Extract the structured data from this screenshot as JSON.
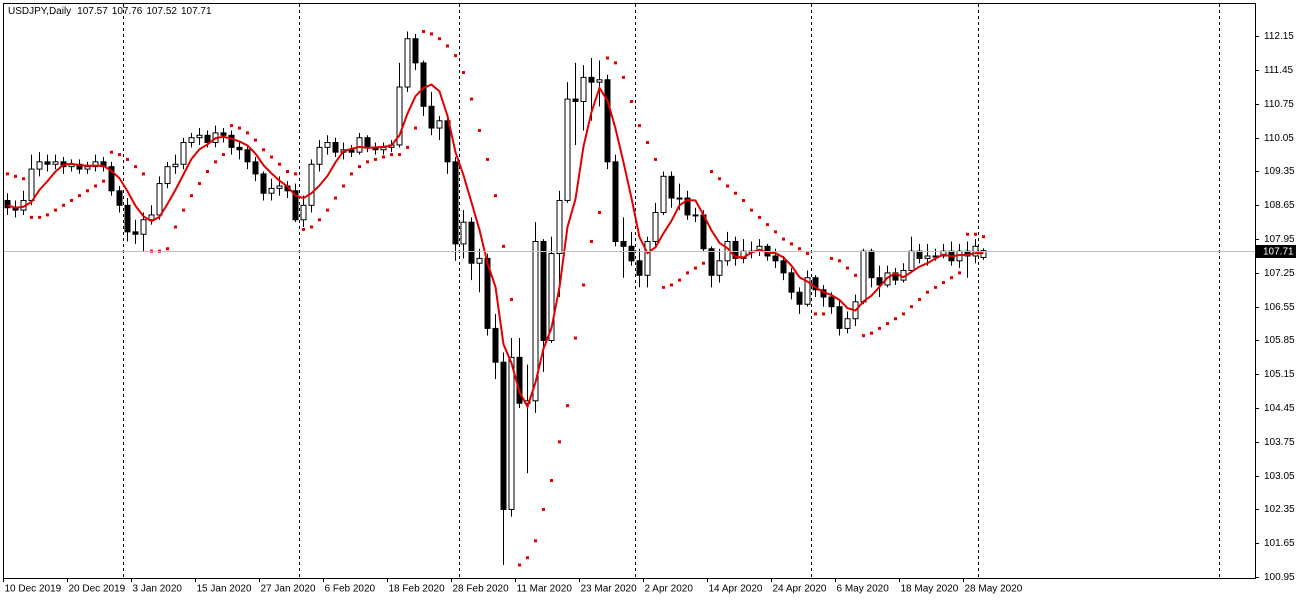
{
  "chart_data": {
    "type": "candlestick",
    "title": "USDJPY,Daily",
    "categories": [
      "10 Dec 2019",
      null,
      null,
      null,
      null,
      null,
      null,
      null,
      "20 Dec 2019",
      null,
      null,
      null,
      null,
      null,
      null,
      null,
      "3 Jan 2020",
      null,
      null,
      null,
      null,
      null,
      null,
      null,
      "15 Jan 2020",
      null,
      null,
      null,
      null,
      null,
      null,
      null,
      "27 Jan 2020",
      null,
      null,
      null,
      null,
      null,
      null,
      null,
      "6 Feb 2020",
      null,
      null,
      null,
      null,
      null,
      null,
      null,
      "18 Feb 2020",
      null,
      null,
      null,
      null,
      null,
      null,
      null,
      "28 Feb 2020",
      null,
      null,
      null,
      null,
      null,
      null,
      null,
      "11 Mar 2020",
      null,
      null,
      null,
      null,
      null,
      null,
      null,
      "23 Mar 2020",
      null,
      null,
      null,
      null,
      null,
      null,
      null,
      "2 Apr 2020",
      null,
      null,
      null,
      null,
      null,
      null,
      null,
      "14 Apr 2020",
      null,
      null,
      null,
      null,
      null,
      null,
      null,
      "24 Apr 2020",
      null,
      null,
      null,
      null,
      null,
      null,
      null,
      "6 May 2020",
      null,
      null,
      null,
      null,
      null,
      null,
      null,
      "18 May 2020",
      null,
      null,
      null,
      null,
      null,
      null,
      null,
      "28 May 2020",
      null,
      null
    ],
    "open": [
      108.75,
      108.6,
      108.55,
      108.75,
      109.4,
      109.55,
      109.5,
      109.55,
      109.45,
      109.5,
      109.4,
      109.45,
      109.55,
      109.45,
      108.95,
      108.65,
      108.1,
      108.05,
      108.35,
      108.45,
      109.1,
      109.45,
      109.5,
      109.95,
      110.05,
      110.1,
      109.95,
      110.15,
      110.1,
      109.85,
      109.8,
      109.55,
      109.3,
      108.9,
      109.0,
      109.05,
      108.95,
      108.35,
      108.65,
      109.5,
      109.85,
      109.95,
      109.75,
      109.8,
      109.75,
      110.05,
      109.85,
      109.8,
      109.85,
      109.9,
      111.1,
      112.1,
      111.6,
      110.7,
      110.25,
      110.4,
      109.55,
      107.85,
      108.3,
      107.45,
      107.55,
      106.1,
      105.4,
      102.35,
      105.5,
      104.55,
      104.6,
      107.9,
      105.85,
      107.65,
      108.75,
      110.85,
      110.8,
      111.3,
      111.2,
      111.25,
      109.55,
      107.9,
      107.8,
      107.5,
      107.2,
      107.9,
      108.5,
      109.25,
      108.8,
      108.8,
      108.45,
      108.45,
      107.75,
      107.2,
      107.5,
      107.9,
      107.55,
      107.7,
      107.7,
      107.8,
      107.6,
      107.5,
      107.25,
      106.85,
      106.6,
      107.15,
      106.9,
      106.75,
      106.55,
      106.1,
      106.3,
      106.65,
      107.7,
      107.15,
      107.0,
      107.25,
      107.1,
      107.3,
      107.7,
      107.55,
      107.6,
      107.6,
      107.7,
      107.5,
      107.7,
      107.6,
      107.57
    ],
    "high": [
      108.9,
      108.75,
      108.95,
      109.7,
      109.75,
      109.7,
      109.7,
      109.65,
      109.6,
      109.6,
      109.55,
      109.7,
      109.65,
      109.55,
      109.05,
      108.8,
      108.35,
      108.5,
      108.65,
      109.25,
      109.55,
      109.7,
      110.05,
      110.15,
      110.25,
      110.2,
      110.3,
      110.25,
      110.2,
      109.95,
      109.9,
      109.65,
      109.35,
      109.2,
      109.25,
      109.15,
      109.1,
      108.85,
      109.6,
      110.0,
      110.1,
      110.05,
      109.95,
      109.9,
      110.15,
      110.1,
      109.95,
      109.95,
      110.0,
      111.6,
      112.25,
      112.2,
      111.65,
      111.0,
      110.5,
      110.45,
      109.65,
      108.55,
      108.4,
      107.75,
      107.65,
      106.4,
      105.6,
      105.9,
      105.9,
      105.35,
      108.3,
      107.95,
      108.0,
      108.95,
      111.2,
      111.6,
      111.55,
      111.7,
      111.65,
      111.35,
      109.7,
      108.4,
      108.1,
      107.75,
      108.0,
      108.7,
      109.35,
      109.35,
      109.1,
      108.95,
      108.6,
      108.55,
      107.8,
      107.75,
      108.1,
      108.0,
      107.95,
      107.9,
      107.95,
      107.85,
      107.75,
      107.6,
      107.35,
      106.95,
      107.3,
      107.2,
      107.0,
      106.85,
      106.7,
      106.45,
      106.8,
      107.75,
      107.75,
      107.4,
      107.4,
      107.35,
      107.45,
      108.0,
      107.85,
      107.85,
      107.75,
      107.85,
      107.9,
      107.85,
      107.9,
      107.95,
      107.76
    ],
    "low": [
      108.45,
      108.4,
      108.45,
      108.65,
      109.25,
      109.35,
      109.4,
      109.3,
      109.35,
      109.3,
      109.3,
      109.35,
      109.35,
      108.85,
      108.5,
      107.9,
      107.85,
      107.7,
      108.25,
      108.35,
      109.0,
      109.3,
      109.4,
      109.85,
      109.9,
      109.85,
      109.85,
      109.95,
      109.7,
      109.6,
      109.4,
      109.15,
      108.75,
      108.75,
      108.85,
      108.8,
      108.3,
      108.2,
      108.5,
      109.35,
      109.7,
      109.65,
      109.6,
      109.65,
      109.7,
      109.75,
      109.7,
      109.7,
      109.75,
      109.85,
      111.0,
      111.45,
      110.5,
      110.1,
      110.0,
      109.3,
      107.5,
      107.55,
      107.1,
      106.85,
      105.95,
      105.05,
      101.2,
      102.2,
      104.45,
      103.1,
      104.35,
      105.2,
      105.8,
      106.75,
      108.7,
      109.9,
      110.2,
      110.4,
      110.7,
      109.4,
      107.8,
      107.15,
      107.4,
      106.95,
      106.95,
      107.8,
      108.45,
      108.6,
      108.55,
      108.35,
      108.3,
      107.7,
      106.95,
      107.05,
      107.4,
      107.4,
      107.45,
      107.55,
      107.6,
      107.5,
      107.35,
      107.1,
      106.7,
      106.4,
      106.55,
      106.75,
      106.55,
      106.4,
      105.95,
      106.0,
      106.15,
      106.6,
      106.95,
      106.75,
      106.95,
      107.0,
      107.05,
      107.25,
      107.45,
      107.4,
      107.5,
      107.55,
      107.4,
      107.35,
      107.15,
      107.45,
      107.52
    ],
    "close": [
      108.6,
      108.55,
      108.75,
      109.4,
      109.55,
      109.5,
      109.55,
      109.45,
      109.5,
      109.4,
      109.45,
      109.55,
      109.45,
      108.95,
      108.65,
      108.1,
      108.05,
      108.35,
      108.45,
      109.1,
      109.45,
      109.5,
      109.95,
      110.05,
      110.1,
      109.95,
      110.15,
      110.1,
      109.85,
      109.8,
      109.55,
      109.3,
      108.9,
      109.0,
      109.05,
      108.95,
      108.35,
      108.65,
      109.5,
      109.85,
      109.95,
      109.75,
      109.8,
      109.75,
      110.05,
      109.85,
      109.8,
      109.85,
      109.9,
      111.1,
      112.1,
      111.6,
      110.7,
      110.25,
      110.4,
      109.55,
      107.85,
      108.3,
      107.45,
      107.55,
      106.1,
      105.4,
      102.35,
      105.5,
      104.55,
      104.6,
      107.9,
      105.85,
      107.65,
      108.75,
      110.85,
      110.8,
      111.3,
      111.2,
      111.25,
      109.55,
      107.9,
      107.8,
      107.5,
      107.2,
      107.9,
      108.5,
      109.25,
      108.8,
      108.8,
      108.45,
      108.45,
      107.75,
      107.2,
      107.5,
      107.9,
      107.55,
      107.7,
      107.7,
      107.8,
      107.6,
      107.5,
      107.25,
      106.85,
      106.6,
      107.15,
      106.9,
      106.75,
      106.55,
      106.1,
      106.3,
      106.65,
      107.7,
      107.15,
      107.0,
      107.25,
      107.1,
      107.3,
      107.7,
      107.55,
      107.6,
      107.6,
      107.7,
      107.5,
      107.7,
      107.6,
      107.8,
      107.71
    ],
    "moving_average": {
      "color": "#e00000",
      "values": [
        108.65,
        108.6,
        108.62,
        108.72,
        108.97,
        109.15,
        109.35,
        109.49,
        109.51,
        109.48,
        109.47,
        109.47,
        109.47,
        109.36,
        109.21,
        108.94,
        108.64,
        108.42,
        108.32,
        108.41,
        108.68,
        108.97,
        109.29,
        109.61,
        109.81,
        109.91,
        110.04,
        110.07,
        110.03,
        109.97,
        109.89,
        109.72,
        109.48,
        109.31,
        109.16,
        109.04,
        108.85,
        108.8,
        108.9,
        109.06,
        109.26,
        109.54,
        109.77,
        109.82,
        109.86,
        109.84,
        109.85,
        109.86,
        109.89,
        110.1,
        110.55,
        110.91,
        111.08,
        111.15,
        111.01,
        110.5,
        109.75,
        109.27,
        108.71,
        108.14,
        107.45,
        106.96,
        105.77,
        105.38,
        104.78,
        104.48,
        104.98,
        105.68,
        106.11,
        106.95,
        108.2,
        108.78,
        109.87,
        110.58,
        111.08,
        110.82,
        110.24,
        109.54,
        108.8,
        107.99,
        107.66,
        107.78,
        108.07,
        108.33,
        108.65,
        108.76,
        108.75,
        108.45,
        108.13,
        107.87,
        107.76,
        107.58,
        107.57,
        107.67,
        107.73,
        107.67,
        107.66,
        107.57,
        107.4,
        107.16,
        107.07,
        106.95,
        106.85,
        106.79,
        106.69,
        106.52,
        106.47,
        106.66,
        106.78,
        106.96,
        107.15,
        107.24,
        107.16,
        107.27,
        107.38,
        107.45,
        107.55,
        107.63,
        107.59,
        107.62,
        107.62,
        107.66,
        107.66
      ]
    },
    "parabolic_sar": {
      "color": "#e00000",
      "values": [
        109.3,
        109.25,
        109.2,
        108.4,
        108.4,
        108.45,
        108.55,
        108.65,
        108.75,
        108.85,
        108.95,
        109.05,
        109.15,
        109.75,
        109.7,
        109.6,
        109.45,
        109.3,
        107.7,
        107.7,
        107.75,
        108.2,
        108.55,
        108.85,
        109.1,
        109.35,
        109.55,
        109.7,
        110.3,
        110.25,
        110.15,
        110.0,
        109.8,
        109.65,
        109.5,
        109.35,
        109.3,
        108.15,
        108.2,
        108.35,
        108.55,
        108.8,
        109.05,
        109.3,
        109.45,
        109.55,
        109.6,
        109.65,
        109.7,
        109.7,
        109.85,
        110.25,
        112.25,
        112.2,
        112.1,
        111.95,
        111.75,
        111.4,
        110.85,
        110.2,
        109.6,
        108.85,
        107.8,
        106.7,
        101.2,
        101.35,
        101.7,
        102.35,
        102.95,
        103.75,
        104.5,
        105.9,
        107.0,
        107.9,
        108.5,
        111.7,
        111.6,
        111.3,
        110.8,
        110.3,
        109.95,
        109.6,
        106.95,
        107.0,
        107.1,
        107.25,
        107.35,
        107.45,
        109.35,
        109.2,
        109.05,
        108.9,
        108.75,
        108.55,
        108.4,
        108.25,
        108.1,
        107.95,
        107.85,
        107.75,
        107.65,
        106.4,
        106.4,
        107.55,
        107.5,
        107.35,
        107.2,
        105.95,
        106.0,
        106.1,
        106.2,
        106.3,
        106.4,
        106.55,
        106.7,
        106.85,
        106.95,
        107.05,
        107.15,
        107.25,
        108.05,
        108.05,
        108.0
      ]
    },
    "up_color": "#ffffff",
    "down_color": "#000000",
    "ylim": [
      100.93,
      112.84
    ],
    "yticks": [
      100.95,
      101.65,
      102.35,
      103.05,
      103.75,
      104.45,
      105.15,
      105.85,
      106.55,
      107.25,
      107.95,
      108.65,
      109.35,
      110.05,
      110.75,
      111.45,
      112.15
    ]
  }
}
